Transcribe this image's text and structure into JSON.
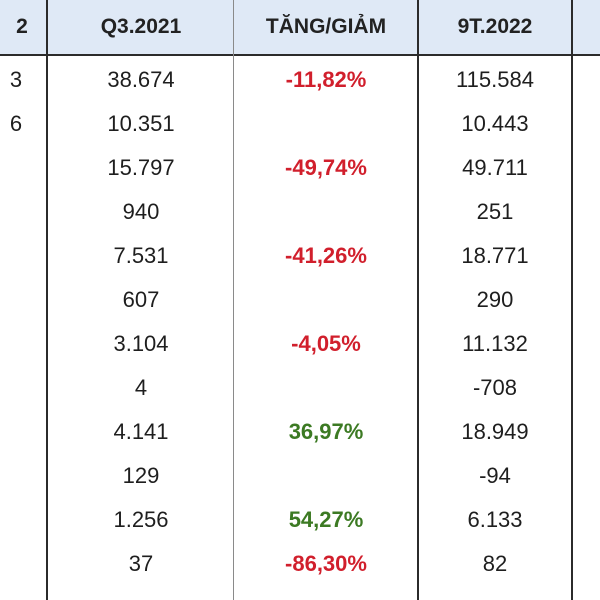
{
  "colors": {
    "header_bg": "#dfe9f6",
    "negative": "#d11f2c",
    "positive": "#3c7a23"
  },
  "header": {
    "partial_prev": "2",
    "q3_2021": "Q3.2021",
    "change": "TĂNG/GIẢM",
    "nine_months_2022": "9T.2022"
  },
  "rows": [
    {
      "partial": "3",
      "q3_2021": "38.674",
      "change": "-11,82%",
      "change_sign": "negative",
      "nine_months_2022": "115.584"
    },
    {
      "partial": "6",
      "q3_2021": "10.351",
      "change": "",
      "change_sign": "",
      "nine_months_2022": "10.443"
    },
    {
      "partial": "",
      "q3_2021": "15.797",
      "change": "-49,74%",
      "change_sign": "negative",
      "nine_months_2022": "49.711"
    },
    {
      "partial": "",
      "q3_2021": "940",
      "change": "",
      "change_sign": "",
      "nine_months_2022": "251"
    },
    {
      "partial": "",
      "q3_2021": "7.531",
      "change": "-41,26%",
      "change_sign": "negative",
      "nine_months_2022": "18.771"
    },
    {
      "partial": "",
      "q3_2021": "607",
      "change": "",
      "change_sign": "",
      "nine_months_2022": "290"
    },
    {
      "partial": "",
      "q3_2021": "3.104",
      "change": "-4,05%",
      "change_sign": "negative",
      "nine_months_2022": "11.132"
    },
    {
      "partial": "",
      "q3_2021": "4",
      "change": "",
      "change_sign": "",
      "nine_months_2022": "-708"
    },
    {
      "partial": "",
      "q3_2021": "4.141",
      "change": "36,97%",
      "change_sign": "positive",
      "nine_months_2022": "18.949"
    },
    {
      "partial": "",
      "q3_2021": "129",
      "change": "",
      "change_sign": "",
      "nine_months_2022": "-94"
    },
    {
      "partial": "",
      "q3_2021": "1.256",
      "change": "54,27%",
      "change_sign": "positive",
      "nine_months_2022": "6.133"
    },
    {
      "partial": "",
      "q3_2021": "37",
      "change": "-86,30%",
      "change_sign": "negative",
      "nine_months_2022": "82"
    }
  ]
}
